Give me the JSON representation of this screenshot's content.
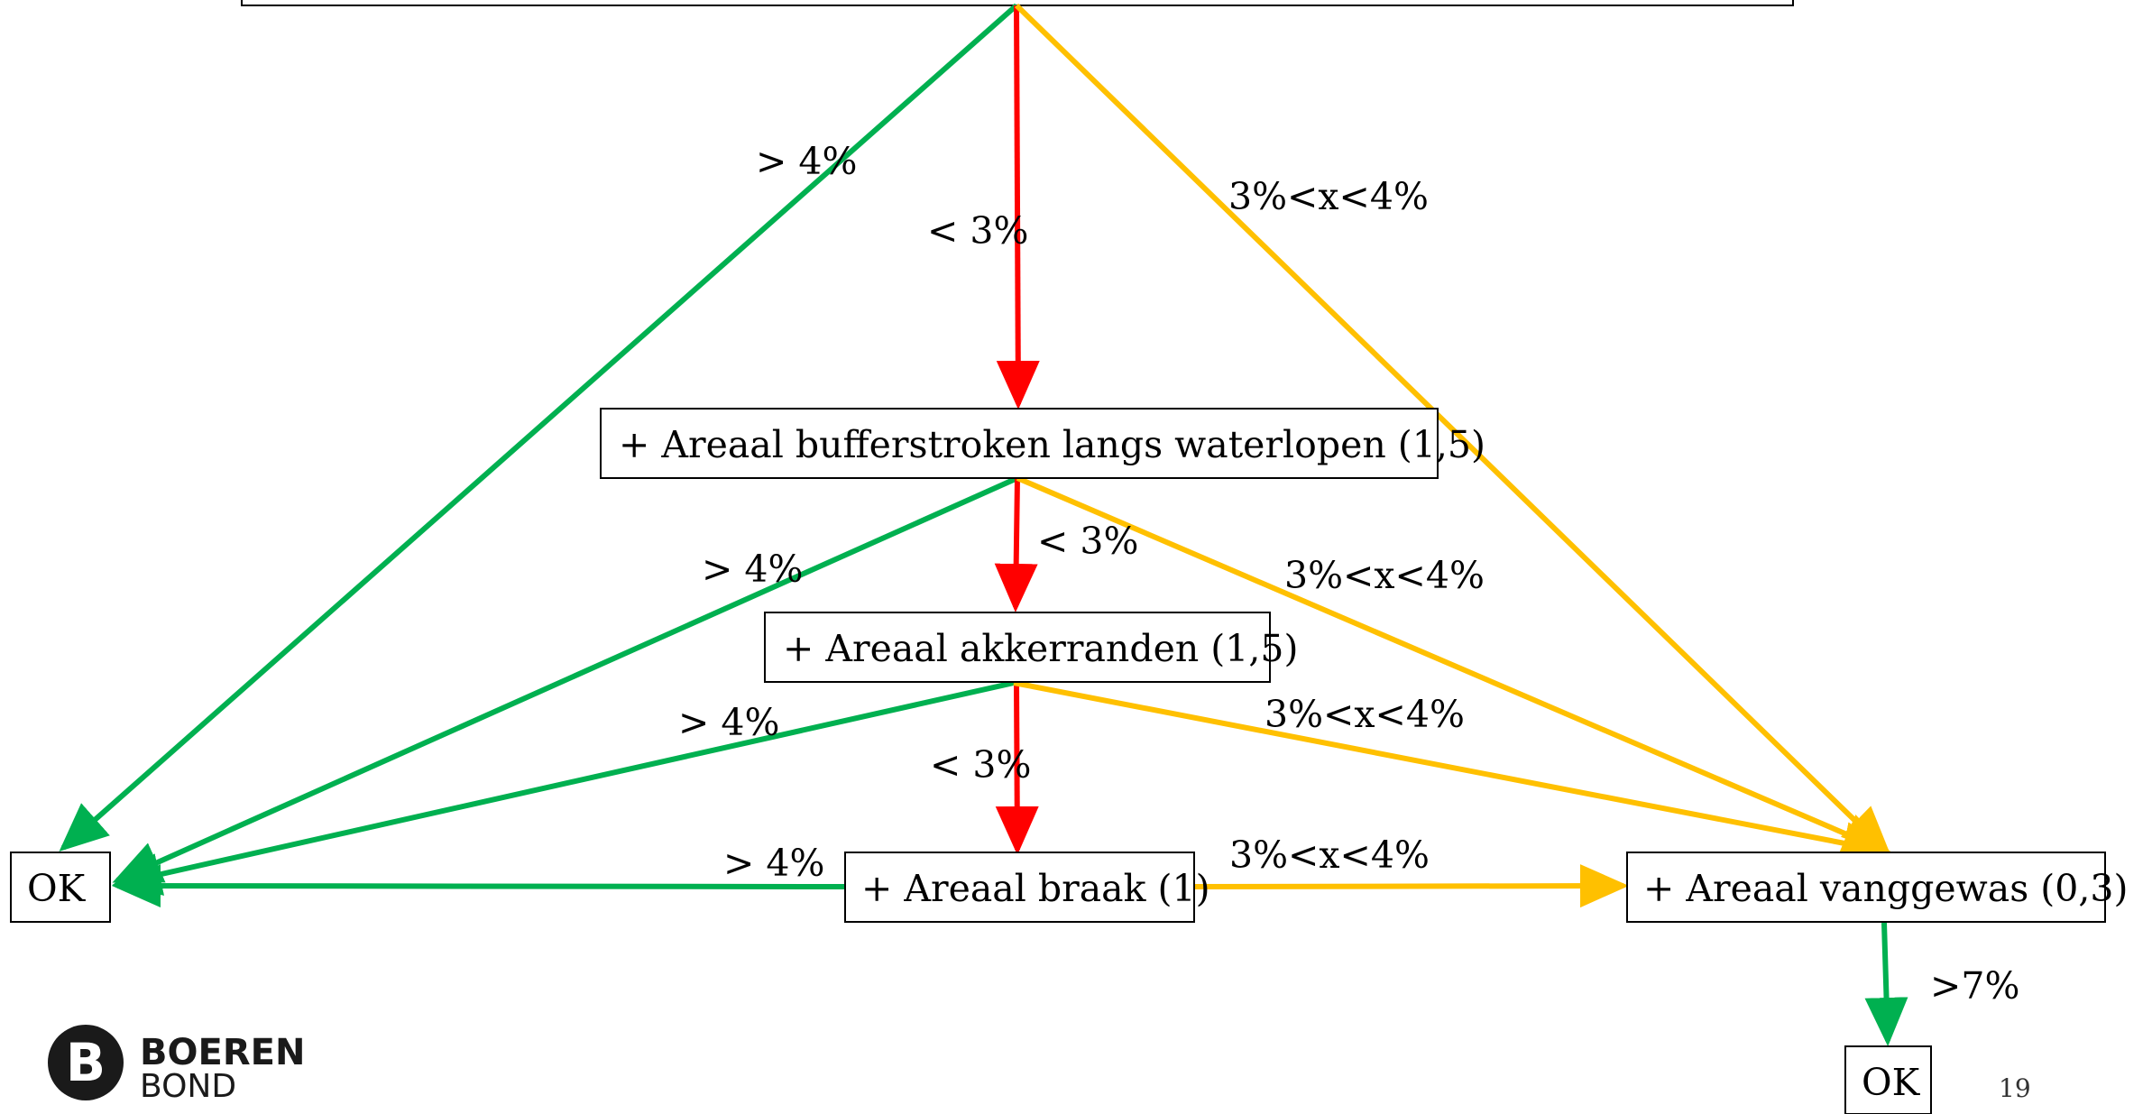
{
  "colors": {
    "green": "#00b050",
    "red": "#ff0000",
    "yellow": "#ffc000"
  },
  "nodes": {
    "buffer": "+ Areaal bufferstroken langs waterlopen (1,5)",
    "akker": "+ Areaal akkerranden (1,5)",
    "braak": "+ Areaal braak (1)",
    "vanggewas": "+ Areaal vanggewas (0,3)",
    "ok_left": "OK",
    "ok_bottom": "OK"
  },
  "labels": {
    "gt4_top": "> 4%",
    "lt3_top": "< 3%",
    "mid_top": "3%<x<4%",
    "gt4_buffer": "> 4%",
    "lt3_buffer": "< 3%",
    "mid_buffer": "3%<x<4%",
    "gt4_akker": "> 4%",
    "lt3_akker": "< 3%",
    "mid_akker": "3%<x<4%",
    "gt4_braak": "> 4%",
    "mid_braak": "3%<x<4%",
    "gt7_vanggewas": ">7%"
  },
  "logo": {
    "line1": "BOEREN",
    "line2": "BOND"
  },
  "page_number": "19"
}
